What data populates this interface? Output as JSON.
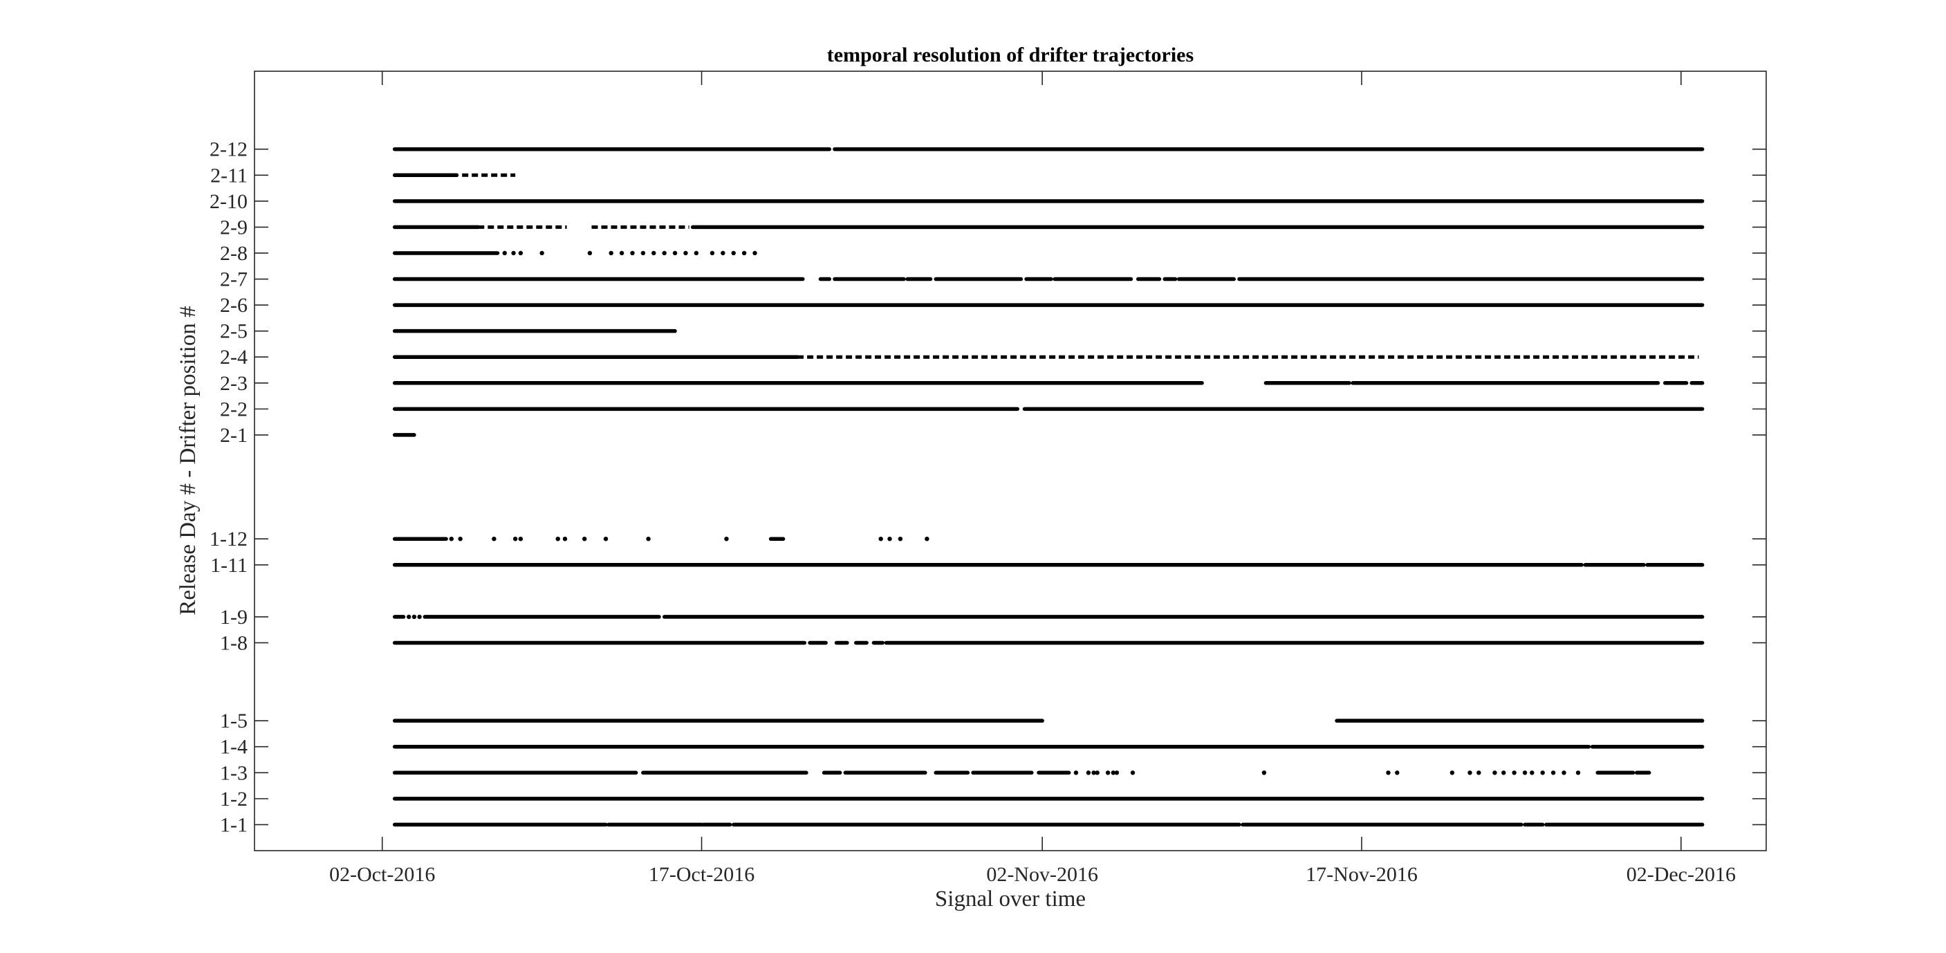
{
  "chart_data": {
    "type": "scatter",
    "title": "temporal resolution of drifter trajectories",
    "xlabel": "Signal over time",
    "ylabel": "Release Day # - Drifter position #",
    "xlim": [
      "2016-09-26",
      "2016-12-06"
    ],
    "ylim": [
      0,
      30
    ],
    "x_ticks": [
      {
        "date": "2016-10-02",
        "label": "02-Oct-2016"
      },
      {
        "date": "2016-10-17",
        "label": "17-Oct-2016"
      },
      {
        "date": "2016-11-02",
        "label": "02-Nov-2016"
      },
      {
        "date": "2016-11-17",
        "label": "17-Nov-2016"
      },
      {
        "date": "2016-12-02",
        "label": "02-Dec-2016"
      }
    ],
    "y_ticks": [
      {
        "value": 1,
        "label": "1-1"
      },
      {
        "value": 2,
        "label": "1-2"
      },
      {
        "value": 3,
        "label": "1-3"
      },
      {
        "value": 4,
        "label": "1-4"
      },
      {
        "value": 5,
        "label": "1-5"
      },
      {
        "value": 8,
        "label": "1-8"
      },
      {
        "value": 9,
        "label": "1-9"
      },
      {
        "value": 11,
        "label": "1-11"
      },
      {
        "value": 12,
        "label": "1-12"
      },
      {
        "value": 16,
        "label": "2-1"
      },
      {
        "value": 17,
        "label": "2-2"
      },
      {
        "value": 18,
        "label": "2-3"
      },
      {
        "value": 19,
        "label": "2-4"
      },
      {
        "value": 20,
        "label": "2-5"
      },
      {
        "value": 21,
        "label": "2-6"
      },
      {
        "value": 22,
        "label": "2-7"
      },
      {
        "value": 23,
        "label": "2-8"
      },
      {
        "value": 24,
        "label": "2-9"
      },
      {
        "value": 25,
        "label": "2-10"
      },
      {
        "value": 26,
        "label": "2-11"
      },
      {
        "value": 27,
        "label": "2-12"
      }
    ],
    "grid": false,
    "marker_color": "#000000",
    "series": [
      {
        "y": 1,
        "segments": [
          [
            "2016-10-02T14:00",
            "2016-10-12T12:00"
          ],
          [
            "2016-10-12T15:00",
            "2016-10-17T00:00"
          ],
          [
            "2016-10-17T02:00",
            "2016-10-18T08:00"
          ],
          [
            "2016-10-18T12:00",
            "2016-11-11T06:00"
          ],
          [
            "2016-11-11T10:00",
            "2016-11-24T12:00"
          ],
          [
            "2016-11-24T16:00",
            "2016-11-25T12:00"
          ],
          [
            "2016-11-25T16:00",
            "2016-12-03T00:00"
          ]
        ],
        "dots": []
      },
      {
        "y": 2,
        "segments": [
          [
            "2016-10-02T14:00",
            "2016-12-03T00:00"
          ]
        ],
        "dots": []
      },
      {
        "y": 3,
        "segments": [
          [
            "2016-10-02T14:00",
            "2016-10-13T22:00"
          ],
          [
            "2016-10-14T06:00",
            "2016-10-21T22:00"
          ],
          [
            "2016-10-22T18:00",
            "2016-10-23T12:00"
          ],
          [
            "2016-10-23T18:00",
            "2016-10-27T12:00"
          ],
          [
            "2016-10-28T00:00",
            "2016-10-29T12:00"
          ],
          [
            "2016-10-29T18:00",
            "2016-11-01T12:00"
          ],
          [
            "2016-11-01T20:00",
            "2016-11-03T06:00"
          ],
          [
            "2016-11-28T02:00",
            "2016-11-29T18:00"
          ],
          [
            "2016-11-29T22:00",
            "2016-11-30T12:00"
          ]
        ],
        "dots": [
          "2016-11-03T14:00",
          "2016-11-04T04:00",
          "2016-11-04T10:00",
          "2016-11-04T14:00",
          "2016-11-05T02:00",
          "2016-11-05T08:00",
          "2016-11-05T12:00",
          "2016-11-06T06:00",
          "2016-11-12T10:00",
          "2016-11-18T06:00",
          "2016-11-18T16:00",
          "2016-11-21T06:00",
          "2016-11-22T02:00",
          "2016-11-22T12:00",
          "2016-11-23T06:00",
          "2016-11-23T16:00",
          "2016-11-24T04:00",
          "2016-11-24T16:00",
          "2016-11-25T00:00",
          "2016-11-25T12:00",
          "2016-11-26T00:00",
          "2016-11-26T12:00",
          "2016-11-27T04:00"
        ]
      },
      {
        "y": 4,
        "segments": [
          [
            "2016-10-02T14:00",
            "2016-11-27T16:00"
          ],
          [
            "2016-11-27T20:00",
            "2016-12-03T00:00"
          ]
        ],
        "dots": []
      },
      {
        "y": 5,
        "segments": [
          [
            "2016-10-02T14:00",
            "2016-11-02T00:00"
          ],
          [
            "2016-11-15T20:00",
            "2016-12-03T00:00"
          ]
        ],
        "dots": []
      },
      {
        "y": 8,
        "segments": [
          [
            "2016-10-02T14:00",
            "2016-10-21T20:00"
          ],
          [
            "2016-10-22T02:00",
            "2016-10-22T20:00"
          ],
          [
            "2016-10-23T08:00",
            "2016-10-23T20:00"
          ],
          [
            "2016-10-24T06:00",
            "2016-10-24T18:00"
          ],
          [
            "2016-10-25T02:00",
            "2016-10-25T12:00"
          ],
          [
            "2016-10-25T16:00",
            "2016-12-03T00:00"
          ]
        ],
        "dots": []
      },
      {
        "y": 9,
        "segments": [
          [
            "2016-10-02T14:00",
            "2016-10-03T00:00"
          ],
          [
            "2016-10-04T00:00",
            "2016-10-15T00:00"
          ],
          [
            "2016-10-15T06:00",
            "2016-12-03T00:00"
          ]
        ],
        "dots": [
          "2016-10-03T06:00",
          "2016-10-03T12:00",
          "2016-10-03T18:00"
        ]
      },
      {
        "y": 11,
        "segments": [
          [
            "2016-10-02T14:00",
            "2016-11-27T08:00"
          ],
          [
            "2016-11-27T12:00",
            "2016-11-30T06:00"
          ],
          [
            "2016-11-30T10:00",
            "2016-12-03T00:00"
          ]
        ],
        "dots": []
      },
      {
        "y": 12,
        "segments": [
          [
            "2016-10-02T14:00",
            "2016-10-05T00:00"
          ],
          [
            "2016-10-20T06:00",
            "2016-10-20T20:00"
          ]
        ],
        "dots": [
          "2016-10-05T06:00",
          "2016-10-05T16:00",
          "2016-10-07T06:00",
          "2016-10-08T06:00",
          "2016-10-08T12:00",
          "2016-10-10T06:00",
          "2016-10-10T14:00",
          "2016-10-11T12:00",
          "2016-10-12T12:00",
          "2016-10-14T12:00",
          "2016-10-18T04:00",
          "2016-10-25T10:00",
          "2016-10-25T20:00",
          "2016-10-26T08:00",
          "2016-10-27T14:00"
        ]
      },
      {
        "y": 16,
        "segments": [
          [
            "2016-10-02T14:00",
            "2016-10-03T12:00"
          ]
        ],
        "dots": []
      },
      {
        "y": 17,
        "segments": [
          [
            "2016-10-02T14:00",
            "2016-10-31T20:00"
          ],
          [
            "2016-11-01T04:00",
            "2016-12-03T00:00"
          ]
        ],
        "dots": []
      },
      {
        "y": 18,
        "segments": [
          [
            "2016-10-02T14:00",
            "2016-11-09T12:00"
          ],
          [
            "2016-11-12T12:00",
            "2016-11-16T10:00"
          ],
          [
            "2016-11-16T14:00",
            "2016-11-30T22:00"
          ],
          [
            "2016-12-01T06:00",
            "2016-12-02T06:00"
          ],
          [
            "2016-12-02T12:00",
            "2016-12-03T00:00"
          ]
        ],
        "dots": []
      },
      {
        "y": 19,
        "segments": [
          [
            "2016-10-02T14:00",
            "2016-10-21T12:00"
          ]
        ],
        "dashed": [
          [
            "2016-10-21T12:00",
            "2016-12-02T20:00"
          ]
        ],
        "dots": []
      },
      {
        "y": 20,
        "segments": [
          [
            "2016-10-02T14:00",
            "2016-10-15T18:00"
          ]
        ],
        "dots": []
      },
      {
        "y": 21,
        "segments": [
          [
            "2016-10-02T14:00",
            "2016-12-03T00:00"
          ]
        ],
        "dots": []
      },
      {
        "y": 22,
        "segments": [
          [
            "2016-10-02T14:00",
            "2016-10-21T18:00"
          ],
          [
            "2016-10-22T14:00",
            "2016-10-23T00:00"
          ],
          [
            "2016-10-23T06:00",
            "2016-10-26T12:00"
          ],
          [
            "2016-10-26T16:00",
            "2016-10-27T18:00"
          ],
          [
            "2016-10-28T00:00",
            "2016-11-01T00:00"
          ],
          [
            "2016-11-01T06:00",
            "2016-11-02T10:00"
          ],
          [
            "2016-11-02T14:00",
            "2016-11-06T04:00"
          ],
          [
            "2016-11-06T12:00",
            "2016-11-07T12:00"
          ],
          [
            "2016-11-07T18:00",
            "2016-11-08T06:00"
          ],
          [
            "2016-11-08T10:00",
            "2016-11-11T00:00"
          ],
          [
            "2016-11-11T06:00",
            "2016-12-03T00:00"
          ]
        ],
        "dots": []
      },
      {
        "y": 23,
        "segments": [
          [
            "2016-10-02T14:00",
            "2016-10-07T10:00"
          ]
        ],
        "dots": [
          "2016-10-07T18:00",
          "2016-10-08T04:00",
          "2016-10-08T12:00",
          "2016-10-09T12:00",
          "2016-10-11T18:00",
          "2016-10-12T18:00",
          "2016-10-13T06:00",
          "2016-10-13T18:00",
          "2016-10-14T06:00",
          "2016-10-14T18:00",
          "2016-10-15T06:00",
          "2016-10-15T18:00",
          "2016-10-16T06:00",
          "2016-10-16T18:00",
          "2016-10-17T12:00",
          "2016-10-18T00:00",
          "2016-10-18T12:00",
          "2016-10-19T00:00",
          "2016-10-19T12:00"
        ]
      },
      {
        "y": 24,
        "segments": [
          [
            "2016-10-02T14:00",
            "2016-10-06T12:00"
          ],
          [
            "2016-10-16T14:00",
            "2016-12-03T00:00"
          ]
        ],
        "dashed": [
          [
            "2016-10-06T12:00",
            "2016-10-10T16:00"
          ],
          [
            "2016-10-11T20:00",
            "2016-10-16T10:00"
          ]
        ],
        "dots": []
      },
      {
        "y": 25,
        "segments": [
          [
            "2016-10-02T14:00",
            "2016-12-03T00:00"
          ]
        ],
        "dots": []
      },
      {
        "y": 26,
        "segments": [
          [
            "2016-10-02T14:00",
            "2016-10-05T12:00"
          ]
        ],
        "dashed": [
          [
            "2016-10-05T18:00",
            "2016-10-08T06:00"
          ]
        ],
        "dots": []
      },
      {
        "y": 27,
        "segments": [
          [
            "2016-10-02T14:00",
            "2016-10-23T00:00"
          ],
          [
            "2016-10-23T06:00",
            "2016-12-03T00:00"
          ]
        ],
        "dots": []
      }
    ]
  }
}
